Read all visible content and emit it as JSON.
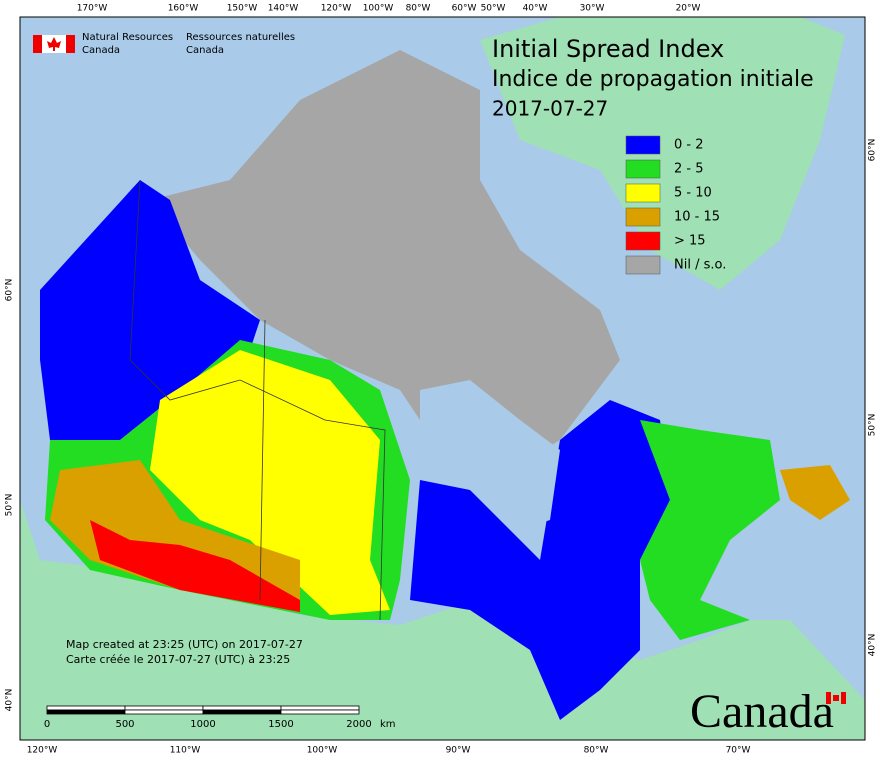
{
  "header": {
    "org_en": [
      "Natural Resources",
      "Canada"
    ],
    "org_fr": [
      "Ressources naturelles",
      "Canada"
    ]
  },
  "title": {
    "en": "Initial Spread Index",
    "fr": "Indice de propagation initiale",
    "date": "2017-07-27"
  },
  "legend": [
    {
      "label": "0 - 2",
      "color": "#0000ff"
    },
    {
      "label": "2 - 5",
      "color": "#22dd22"
    },
    {
      "label": "5 - 10",
      "color": "#ffff00"
    },
    {
      "label": "10 - 15",
      "color": "#d9a000"
    },
    {
      "label": "> 15",
      "color": "#ff0000"
    },
    {
      "label": "Nil / s.o.",
      "color": "#a6a6a6"
    }
  ],
  "graticule": {
    "top": [
      "170°W",
      "160°W",
      "150°W",
      "140°W",
      "120°W",
      "100°W",
      "80°W",
      "60°W",
      "50°W",
      "40°W",
      "30°W",
      "20°W"
    ],
    "bottom": [
      "120°W",
      "110°W",
      "100°W",
      "90°W",
      "80°W",
      "70°W"
    ],
    "left": [
      "60°N",
      "50°N",
      "40°N"
    ],
    "right": [
      "60°N",
      "50°N",
      "40°N"
    ]
  },
  "footer": {
    "created_en": "Map created at 23:25 (UTC) on 2017-07-27",
    "created_fr": "Carte créée le 2017-07-27 (UTC) à 23:25",
    "scale": [
      "0",
      "500",
      "1000",
      "1500",
      "2000"
    ],
    "scale_unit": "km",
    "wordmark": "Canada"
  }
}
